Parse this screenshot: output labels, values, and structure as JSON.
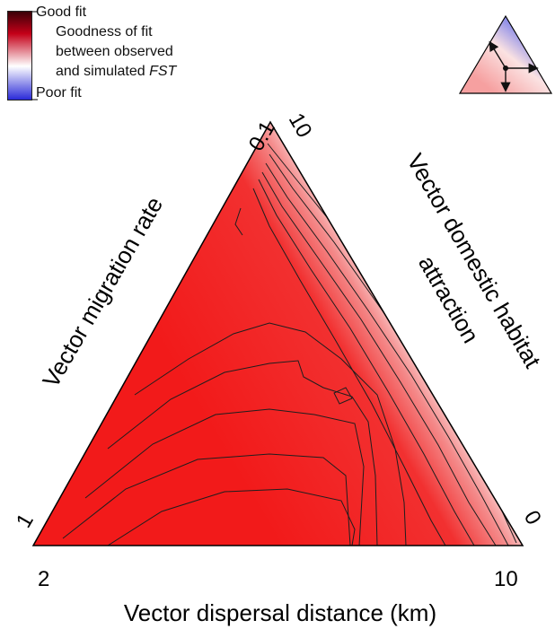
{
  "chart_data": {
    "type": "heatmap",
    "subtype": "ternary-contour",
    "legend": {
      "top_label": "Good fit",
      "bottom_label": "Poor fit",
      "title_lines": [
        "Goodness of fit",
        "between observed",
        "and simulated "
      ],
      "title_italic": "FST",
      "colors": {
        "good": "#c40018",
        "mid": "#ffffff",
        "poor": "#2a2ad8"
      }
    },
    "axes": {
      "left": {
        "label": "Vector migration rate",
        "start": "1",
        "end": "0.1"
      },
      "right": {
        "label_lines": [
          "Vector domestic habitat",
          "attraction"
        ],
        "start": "10",
        "end": "0"
      },
      "bottom": {
        "label": "Vector dispersal distance (km)",
        "start": "2",
        "end": "10"
      }
    },
    "contour_levels": 12,
    "inset_arrows": 3
  }
}
